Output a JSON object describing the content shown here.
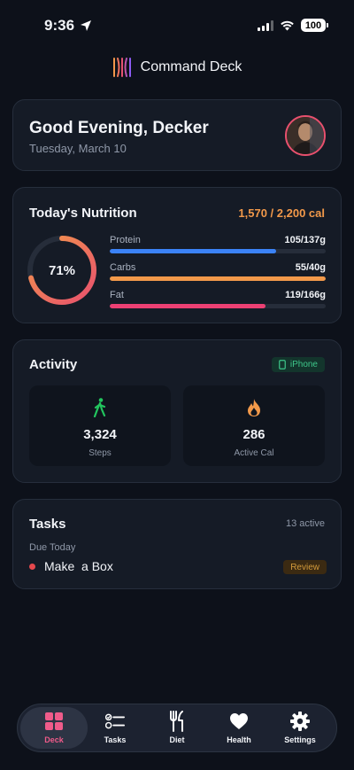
{
  "status_bar": {
    "time": "9:36",
    "battery": "100"
  },
  "app": {
    "title": "Command Deck"
  },
  "greeting": {
    "title": "Good Evening, Decker",
    "date": "Tuesday, March 10"
  },
  "nutrition": {
    "title": "Today's Nutrition",
    "total": "1,570 / 2,200 cal",
    "percent_label": "71%",
    "percent": 0.71,
    "macros": [
      {
        "name": "Protein",
        "value": "105/137g",
        "fraction": 0.77,
        "color": "#3b82f6"
      },
      {
        "name": "Carbs",
        "value": "55/40g",
        "fraction": 1.0,
        "color": "#f2994a"
      },
      {
        "name": "Fat",
        "value": "119/166g",
        "fraction": 0.72,
        "color": "#ec4073"
      }
    ],
    "ring_colors": {
      "start": "#e8506e",
      "end": "#f2994a",
      "track": "#262d3a"
    }
  },
  "activity": {
    "title": "Activity",
    "device": "iPhone",
    "steps": {
      "value": "3,324",
      "label": "Steps",
      "icon": "walking-icon"
    },
    "active_cal": {
      "value": "286",
      "label": "Active Cal",
      "icon": "flame-icon"
    }
  },
  "tasks": {
    "title": "Tasks",
    "count": "13 active",
    "due_label": "Due Today",
    "items": [
      {
        "text": "Make  a Box",
        "badge": "Review"
      }
    ]
  },
  "tab_bar": {
    "active": "Deck",
    "tabs": [
      {
        "label": "Deck",
        "icon": "grid-icon"
      },
      {
        "label": "Tasks",
        "icon": "checklist-icon"
      },
      {
        "label": "Diet",
        "icon": "fork-knife-icon"
      },
      {
        "label": "Health",
        "icon": "heart-icon"
      },
      {
        "label": "Settings",
        "icon": "gear-icon"
      }
    ]
  }
}
